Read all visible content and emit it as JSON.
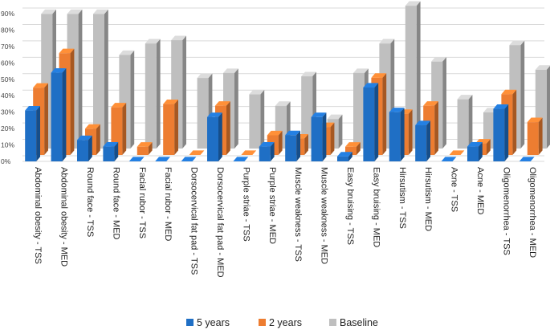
{
  "chart_data": {
    "type": "bar",
    "style": "3d-clustered",
    "title": "",
    "xlabel": "",
    "ylabel": "",
    "ylim": [
      0,
      90
    ],
    "y_ticks": [
      "0%",
      "10%",
      "20%",
      "30%",
      "40%",
      "50%",
      "60%",
      "70%",
      "80%",
      "90%"
    ],
    "grid": true,
    "legend_position": "bottom",
    "categories": [
      "Abdominal obesity - TSS",
      "Abdominal obesity - MED",
      "Round face - TSS",
      "Round face - MED",
      "Facial rubor - TSS",
      "Facial rubor - MED",
      "Dorsocervical fat pad - TSS",
      "Dorsocervical fat pad - MED",
      "Purple striae - TSS",
      "Purple striae - MED",
      "Muscle weakness - TSS",
      "Muscle weakness - MED",
      "Easy bruising - TSS",
      "Easy bruising - MED",
      "Hirsutism - TSS",
      "Hirsutism - MED",
      "Acne - TSS",
      "Acne - MED",
      "Oligomenorrhea - TSS",
      "Oligomenorrhea - MED"
    ],
    "series": [
      {
        "name": "5 years",
        "color": "#1f6fc5",
        "values": [
          31,
          54,
          13,
          9,
          0,
          0,
          0,
          27,
          0,
          9,
          16,
          27,
          3,
          45,
          30,
          22,
          0,
          9,
          32,
          0
        ]
      },
      {
        "name": "2 years",
        "color": "#ed7d31",
        "values": [
          41,
          62,
          16,
          29,
          5,
          31,
          0,
          30,
          0,
          12,
          10,
          17,
          5,
          47,
          25,
          30,
          0,
          7,
          37,
          20
        ]
      },
      {
        "name": "Baseline",
        "color": "#bfbfbf",
        "values": [
          82,
          82,
          82,
          57,
          64,
          66,
          43,
          46,
          33,
          26,
          44,
          18,
          46,
          64,
          87,
          53,
          30,
          22,
          63,
          48
        ]
      }
    ]
  }
}
